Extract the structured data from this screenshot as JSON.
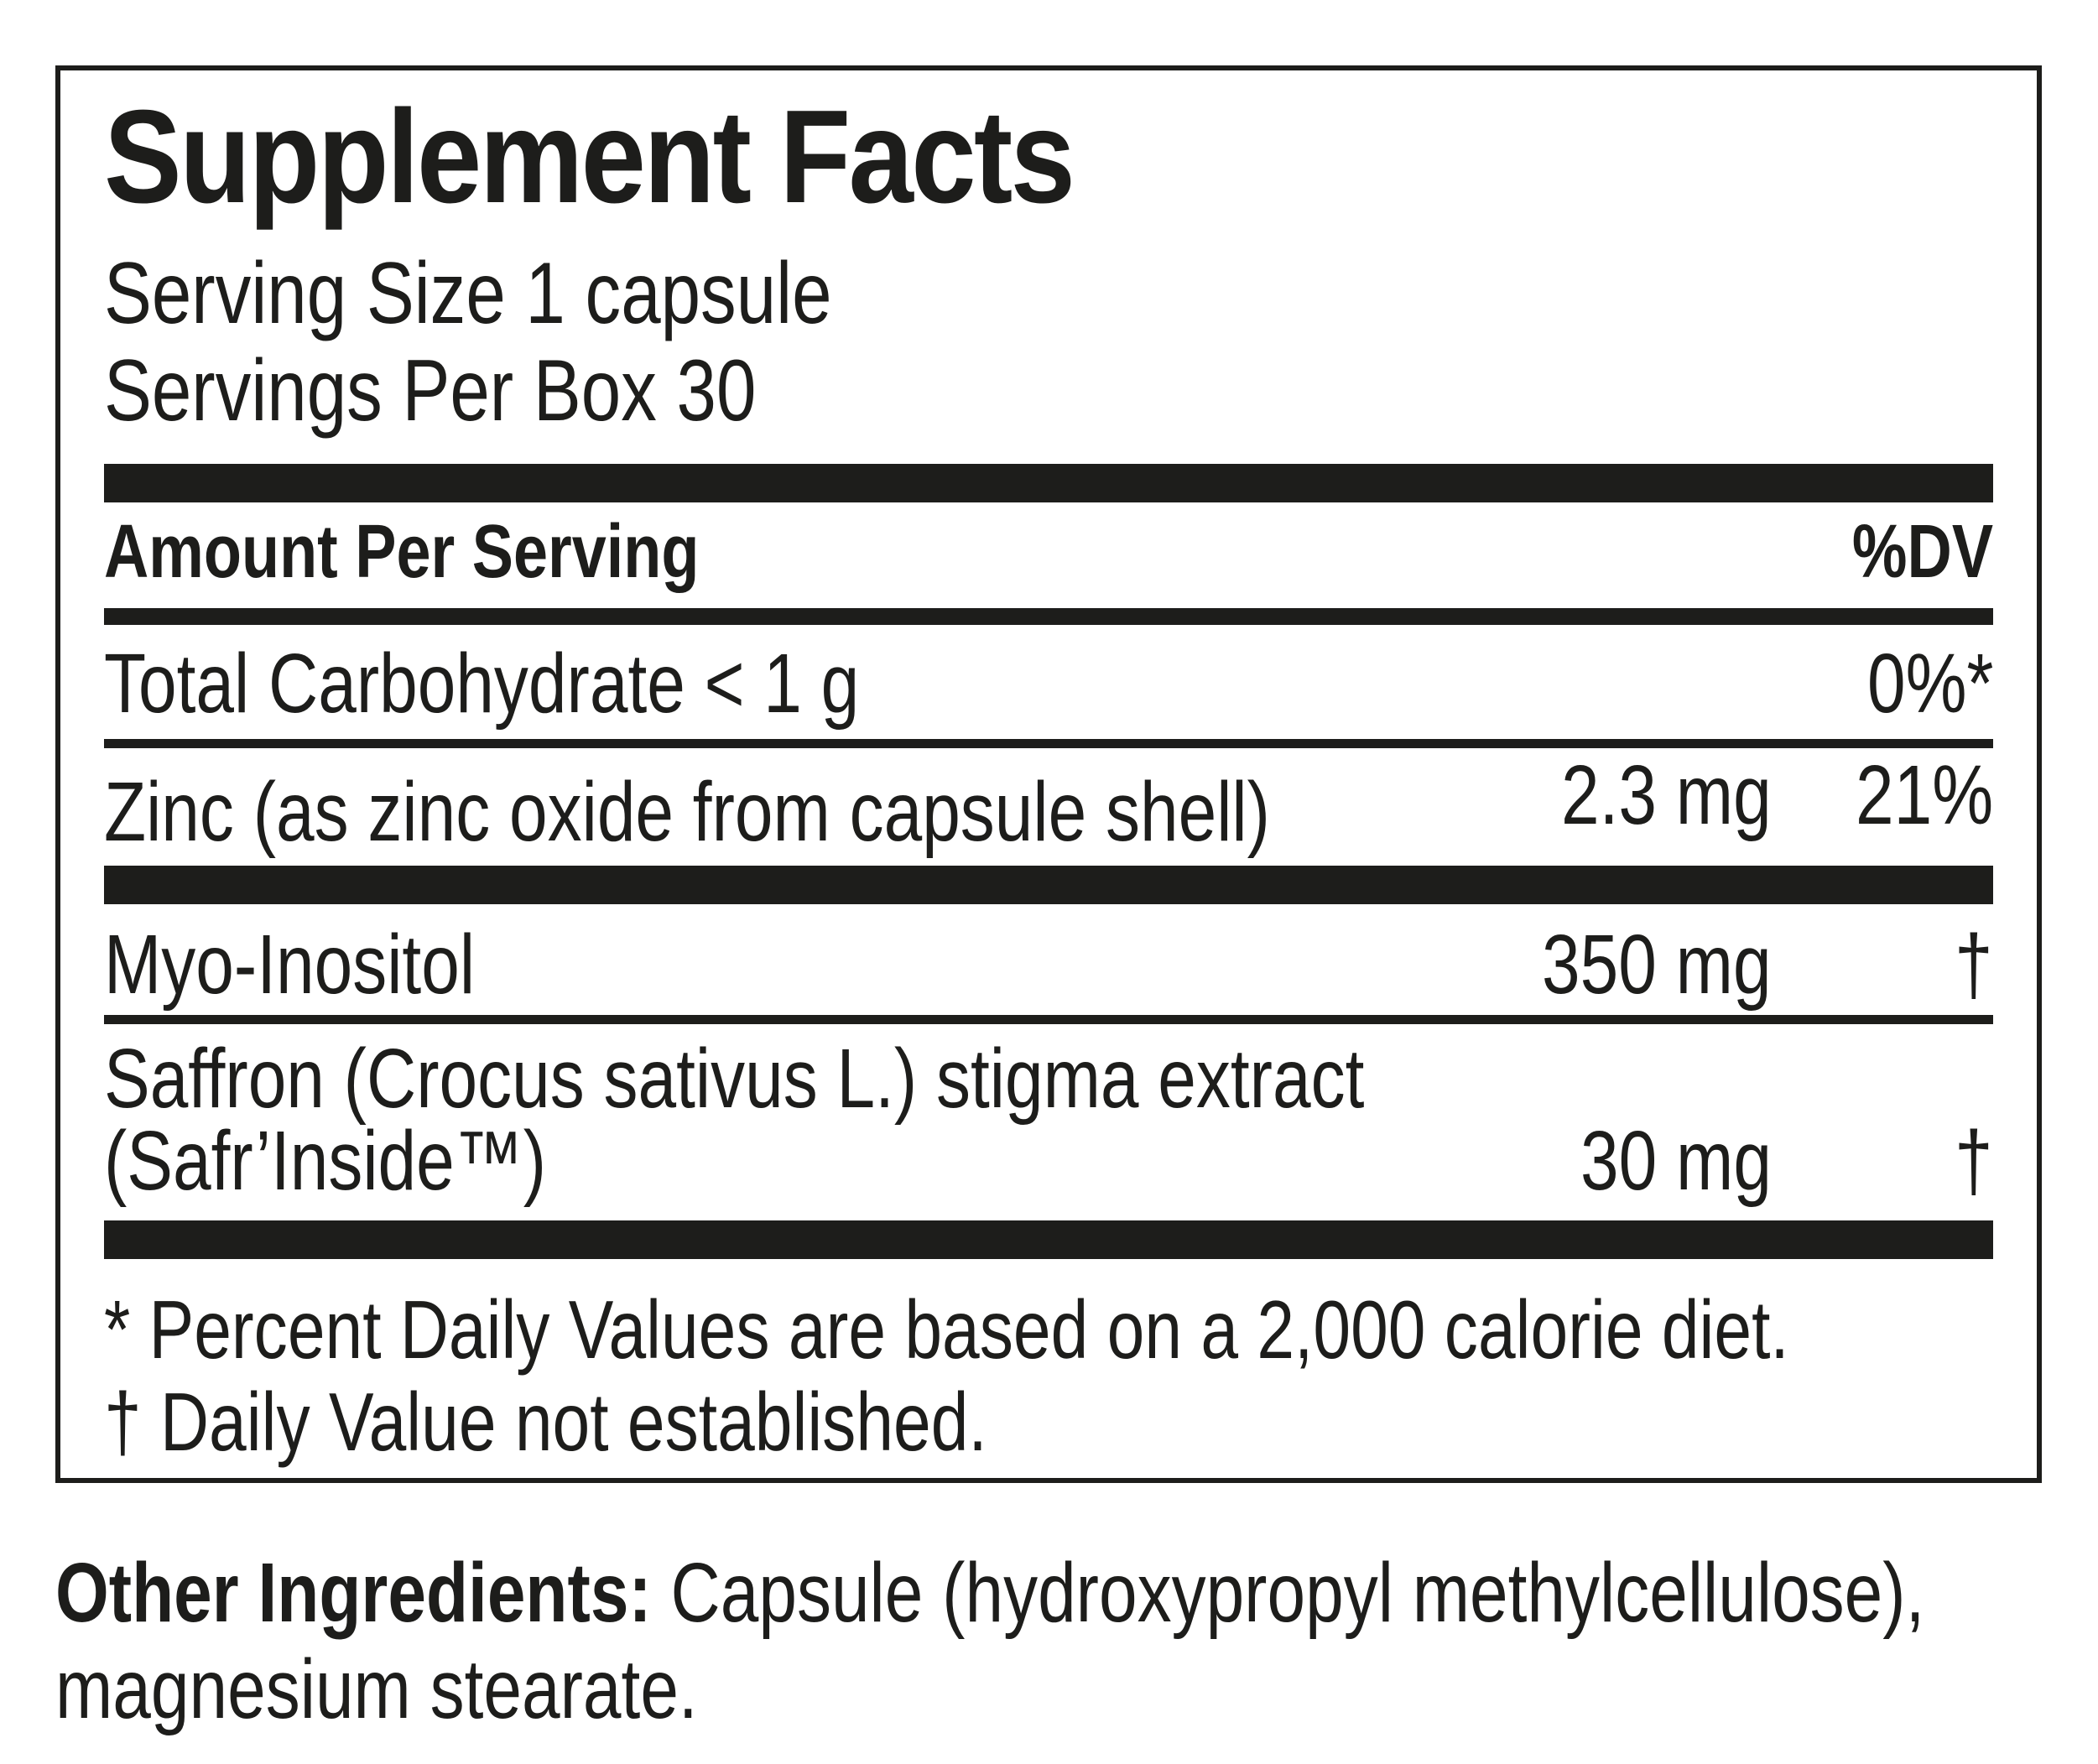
{
  "panel": {
    "title": "Supplement Facts",
    "serving_size": "Serving Size 1 capsule",
    "servings_per_box": "Servings Per Box 30",
    "header": {
      "amount_per_serving": "Amount Per Serving",
      "dv": "%DV"
    },
    "rows": [
      {
        "name": "Total Carbohydrate < 1 g",
        "amount": "",
        "dv": "0%*"
      },
      {
        "name": "Zinc (as zinc oxide from capsule shell)",
        "amount": "2.3 mg",
        "dv": "21%"
      },
      {
        "name": "Myo-Inositol",
        "amount": "350 mg",
        "dv": "†"
      },
      {
        "name_line1": "Saffron (Crocus sativus L.) stigma extract",
        "name_line2": "(Safr’Inside™)",
        "amount": "30 mg",
        "dv": "†"
      }
    ],
    "footnotes": [
      "* Percent Daily Values are based on a 2,000 calorie diet.",
      "† Daily Value not established."
    ]
  },
  "other_ingredients": {
    "label": "Other Ingredients:",
    "line1_rest": " Capsule (hydroxypropyl methylcellulose),",
    "line2": "magnesium stearate."
  },
  "colors": {
    "ink": "#1d1d1b",
    "background": "#ffffff"
  }
}
